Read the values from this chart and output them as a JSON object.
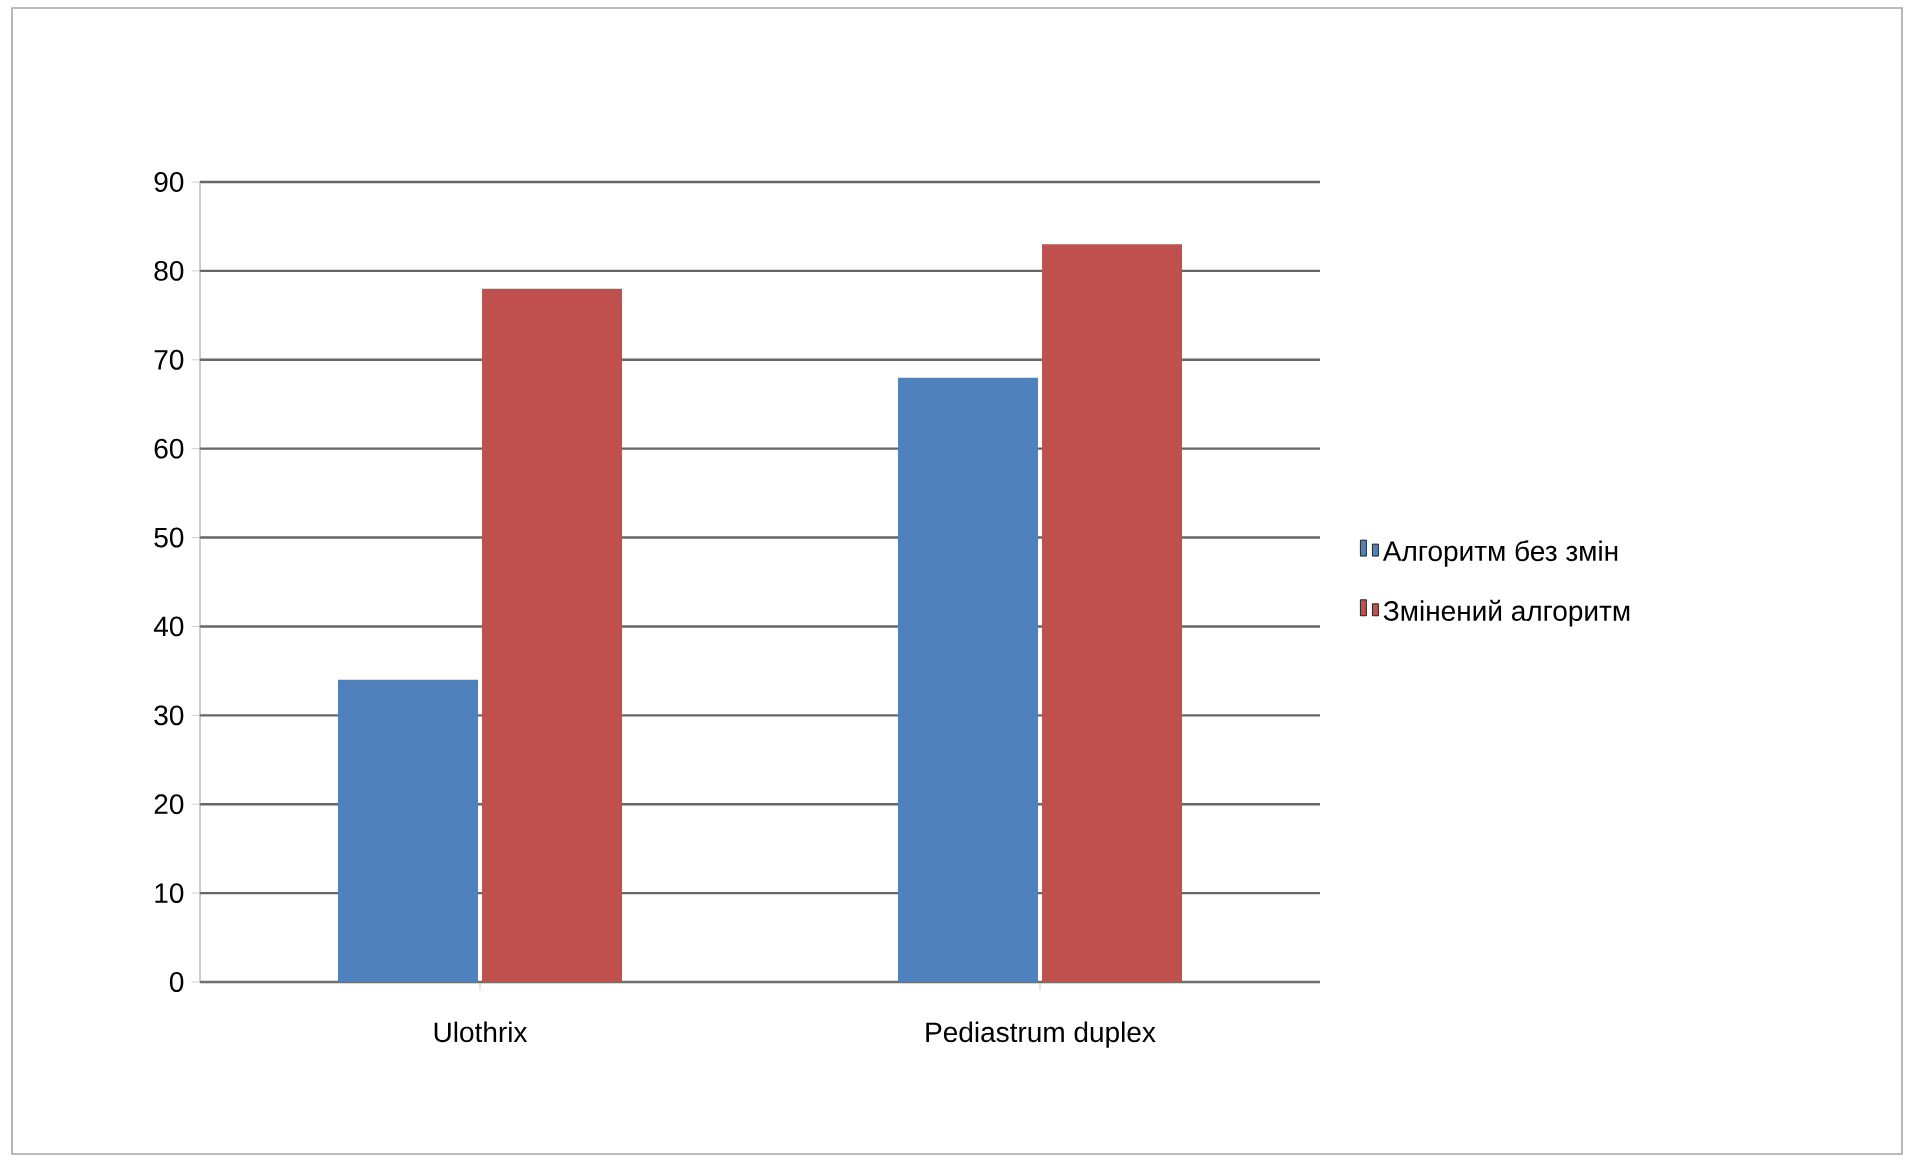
{
  "chart_data": {
    "type": "bar",
    "categories": [
      "Ulothrix",
      "Pediastrum duplex"
    ],
    "series": [
      {
        "name": "Алгоритм без змін",
        "color": "#4f81bd",
        "values": [
          34,
          68
        ]
      },
      {
        "name": "Змінений алгоритм",
        "color": "#c0504d",
        "values": [
          78,
          83
        ]
      }
    ],
    "ylim": [
      0,
      90
    ],
    "yticks": [
      0,
      10,
      20,
      30,
      40,
      50,
      60,
      70,
      80,
      90
    ],
    "grid": "y",
    "legend": "right"
  }
}
